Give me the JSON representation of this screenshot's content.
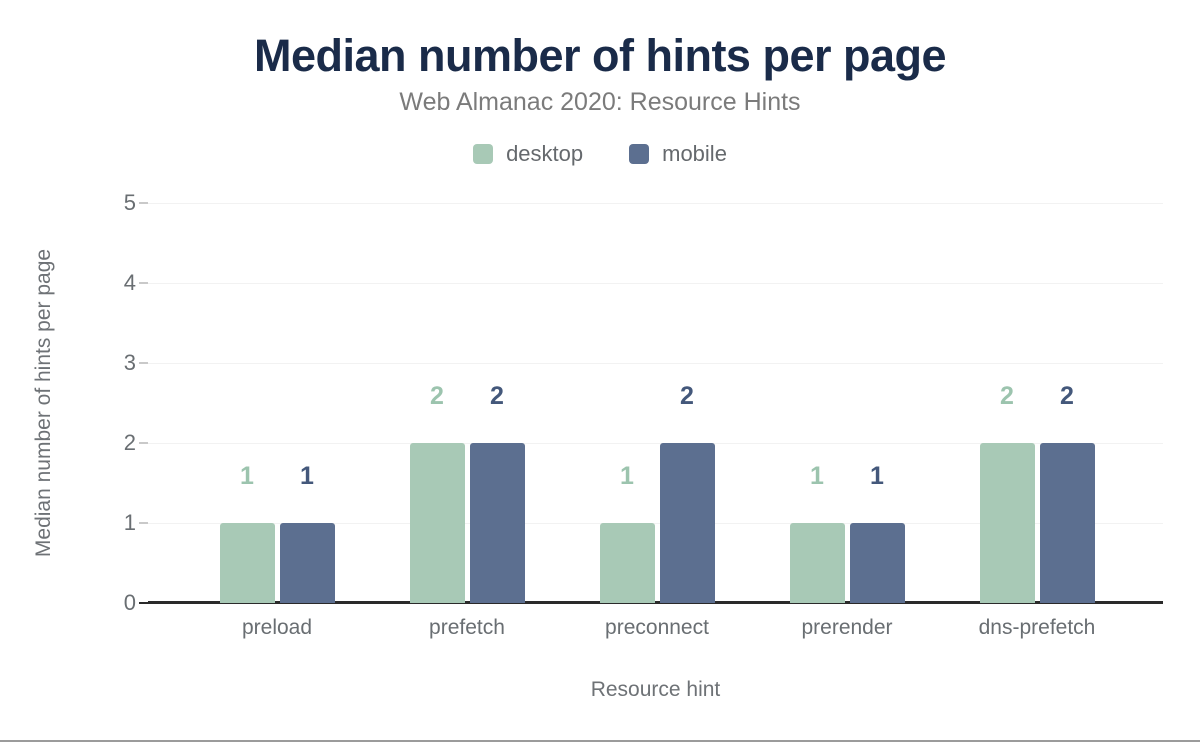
{
  "title": "Median number of hints per page",
  "subtitle": "Web Almanac 2020: Resource Hints",
  "x_axis_title": "Resource hint",
  "y_axis_title": "Median number of hints per page",
  "legend": [
    {
      "label": "desktop",
      "color": "#a8c9b6"
    },
    {
      "label": "mobile",
      "color": "#5c6f90"
    }
  ],
  "colors": {
    "title": "#1a2b49",
    "subtitle": "#7b7b7b",
    "axis_text": "#696e72",
    "gridline": "#f2f2f2",
    "baseline": "#2a2a2a"
  },
  "chart_data": {
    "type": "bar",
    "title": "Median number of hints per page",
    "subtitle": "Web Almanac 2020: Resource Hints",
    "xlabel": "Resource hint",
    "ylabel": "Median number of hints per page",
    "categories": [
      "preload",
      "prefetch",
      "preconnect",
      "prerender",
      "dns-prefetch"
    ],
    "series": [
      {
        "name": "desktop",
        "color": "#a8c9b6",
        "label_color": "#9cc4ae",
        "values": [
          1,
          2,
          1,
          1,
          2
        ]
      },
      {
        "name": "mobile",
        "color": "#5c6f90",
        "label_color": "#44587b",
        "values": [
          1,
          2,
          2,
          1,
          2
        ]
      }
    ],
    "ylim": [
      0,
      5
    ],
    "yticks": [
      0,
      1,
      2,
      3,
      4,
      5
    ],
    "grid": true,
    "legend_position": "top"
  }
}
